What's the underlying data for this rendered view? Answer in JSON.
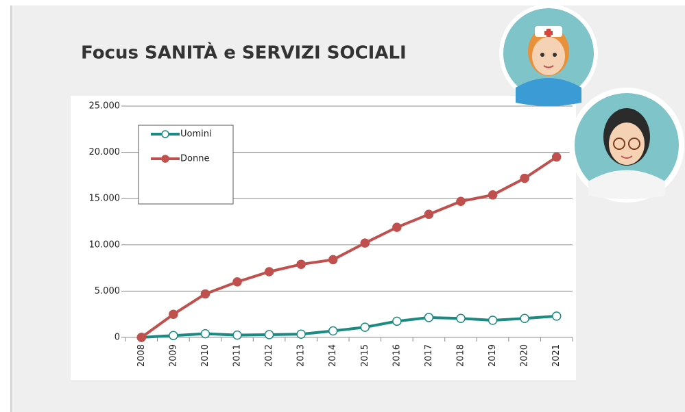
{
  "chart_data": {
    "type": "line",
    "title": "Focus SANITÀ e SERVIZI SOCIALI",
    "categories": [
      "2008",
      "2009",
      "2010",
      "2011",
      "2012",
      "2013",
      "2014",
      "2015",
      "2016",
      "2017",
      "2018",
      "2019",
      "2020",
      "2021"
    ],
    "series": [
      {
        "name": "Uomini",
        "color": "#1a8a82",
        "marker_fill": "#ffffff",
        "values": [
          0,
          200,
          400,
          250,
          300,
          350,
          700,
          1100,
          1750,
          2150,
          2050,
          1850,
          2050,
          2300
        ]
      },
      {
        "name": "Donne",
        "color": "#c0504d",
        "marker_fill": "#c0504d",
        "values": [
          0,
          2500,
          4700,
          6000,
          7100,
          7900,
          8400,
          10200,
          11900,
          13300,
          14700,
          15400,
          17200,
          19500
        ]
      }
    ],
    "ylim": [
      0,
      25000
    ],
    "yticks": [
      0,
      {
        "value": 5000,
        "label": "5.000"
      },
      {
        "value": 10000,
        "label": "10.000"
      },
      {
        "value": 15000,
        "label": "15.000"
      },
      {
        "value": 20000,
        "label": "20.000"
      },
      {
        "value": 25000,
        "label": "25.000"
      }
    ],
    "grid": true,
    "legend": "upper left"
  }
}
